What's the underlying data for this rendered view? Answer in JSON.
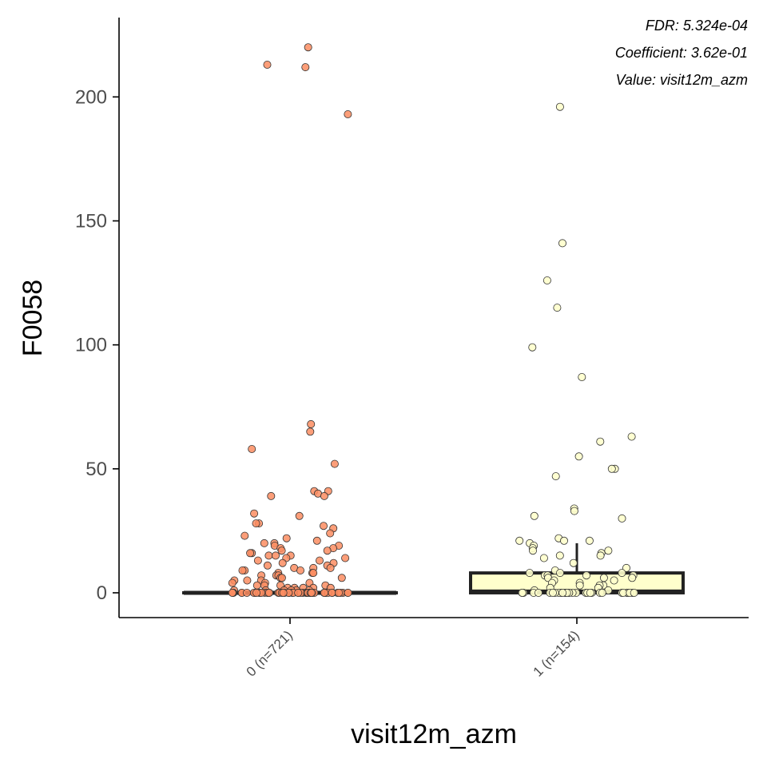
{
  "chart_data": {
    "type": "boxplot",
    "xlabel": "visit12m_azm",
    "ylabel": "F0058",
    "ylim": [
      -10,
      232
    ],
    "yticks": [
      0,
      50,
      100,
      150,
      200
    ],
    "annotations": [
      "FDR: 5.324e-04",
      "Coefficient: 3.62e-01",
      "Value: visit12m_azm"
    ],
    "legend": "none",
    "grid": false,
    "groups": [
      {
        "label": "0 (n=721)",
        "fill": "#fc8d62",
        "box_fill": "#fc8d62",
        "box": {
          "q1": 0,
          "median": 0,
          "q3": 0,
          "whisker_low": 0,
          "whisker_high": 0
        },
        "points": [
          220,
          213,
          212,
          193,
          68,
          65,
          58,
          52,
          41,
          41,
          40,
          39,
          39,
          32,
          31,
          28,
          28,
          27,
          26,
          24,
          23,
          22,
          21,
          20,
          20,
          19,
          19,
          18,
          18,
          17,
          17,
          16,
          16,
          15,
          15,
          15,
          14,
          14,
          13,
          13,
          12,
          12,
          11,
          11,
          10,
          10,
          10,
          9,
          9,
          9,
          8,
          8,
          8,
          7,
          7,
          7,
          6,
          6,
          6,
          5,
          5,
          5,
          4,
          4,
          4,
          3,
          3,
          3,
          3,
          2,
          2,
          2,
          2,
          2,
          1,
          1,
          1,
          1,
          1,
          1,
          0,
          0,
          0,
          0,
          0,
          0,
          0,
          0,
          0,
          0,
          0,
          0,
          0,
          0,
          0,
          0,
          0,
          0,
          0,
          0,
          0,
          0,
          0,
          0,
          0,
          0,
          0,
          0,
          0,
          0,
          0,
          0,
          0,
          0,
          0,
          0,
          0,
          0,
          0,
          0,
          0,
          0,
          0,
          0,
          0,
          0,
          0,
          0,
          0,
          0,
          0,
          0,
          0,
          0,
          0,
          0,
          0,
          0,
          0,
          0
        ]
      },
      {
        "label": "1 (n=154)",
        "fill": "#ffffcc",
        "box_fill": "#ffffcc",
        "box": {
          "q1": 0,
          "median": 0.5,
          "q3": 8,
          "whisker_low": 0,
          "whisker_high": 20
        },
        "points": [
          196,
          141,
          126,
          115,
          99,
          87,
          63,
          61,
          55,
          50,
          50,
          47,
          34,
          33,
          31,
          30,
          22,
          21,
          21,
          21,
          20,
          19,
          18,
          17,
          17,
          16,
          15,
          15,
          14,
          12,
          10,
          9,
          8,
          8,
          8,
          7,
          7,
          7,
          7,
          6,
          6,
          6,
          5,
          5,
          4,
          4,
          3,
          3,
          3,
          2,
          2,
          1,
          1,
          0,
          0,
          0,
          0,
          0,
          0,
          0,
          0,
          0,
          0,
          0,
          0,
          0,
          0,
          0,
          0,
          0,
          0,
          0,
          0,
          0,
          0,
          0,
          0,
          0,
          0,
          0,
          0,
          0,
          0,
          0,
          0,
          0
        ]
      }
    ]
  }
}
